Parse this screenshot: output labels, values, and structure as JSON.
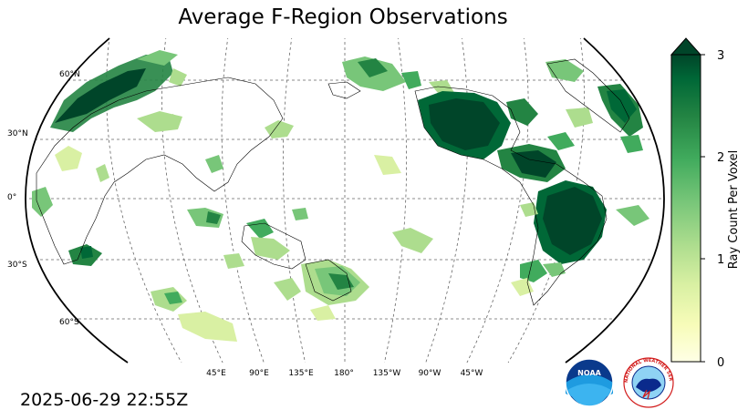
{
  "title": "Average F-Region Observations",
  "timestamp": "2025-06-29 22:55Z",
  "lat_labels": [
    "60°N",
    "30°N",
    "0°",
    "30°S",
    "60°S"
  ],
  "lon_labels": [
    "45°E",
    "90°E",
    "135°E",
    "180°",
    "135°W",
    "90°W",
    "45°W"
  ],
  "colorbar": {
    "label": "Ray Count Per Voxel",
    "ticks": [
      "0",
      "1",
      "2",
      "3"
    ],
    "min": 0,
    "max": 3,
    "extend": "max",
    "colormap": "YlGn",
    "colors": [
      "#ffffe5",
      "#f7fcb9",
      "#d9f0a3",
      "#addd8e",
      "#78c679",
      "#41ab5d",
      "#238443",
      "#006837",
      "#004529"
    ]
  },
  "logos": {
    "noaa": "NOAA",
    "nws": "NATIONAL WEATHER SERVICE"
  }
}
